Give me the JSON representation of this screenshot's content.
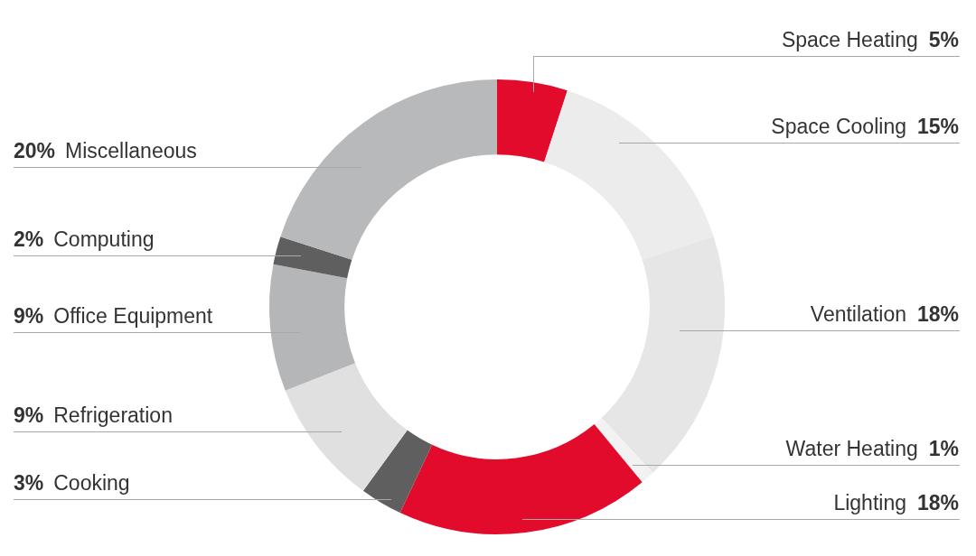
{
  "chart_data": {
    "type": "doughnut",
    "categories": [
      "Space Heating",
      "Space Cooling",
      "Ventilation",
      "Water Heating",
      "Lighting",
      "Cooking",
      "Refrigeration",
      "Office Equipment",
      "Computing",
      "Miscellaneous"
    ],
    "values": [
      5,
      15,
      18,
      1,
      18,
      3,
      9,
      9,
      2,
      20
    ],
    "value_labels": [
      "5%",
      "15%",
      "18%",
      "1%",
      "18%",
      "3%",
      "9%",
      "9%",
      "2%",
      "20%"
    ],
    "colors": [
      "#e30b2b",
      "#ececec",
      "#e6e6e6",
      "#f2f2f2",
      "#e30b2b",
      "#5f5f5f",
      "#e0e0e1",
      "#b5b6b8",
      "#5f5f5f",
      "#b8b9bb"
    ],
    "data_labels": true
  }
}
